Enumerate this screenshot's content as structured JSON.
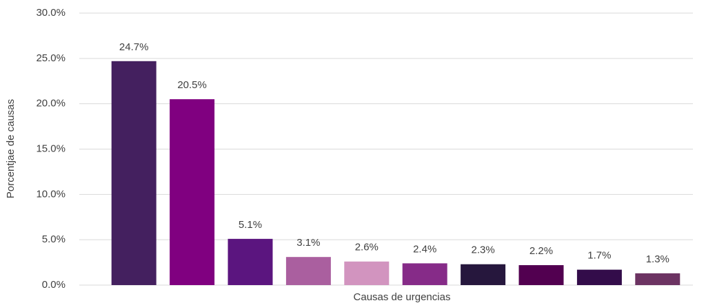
{
  "chart_data": {
    "type": "bar",
    "xlabel": "Causas de urgencias",
    "ylabel": "Porcentjae de causas",
    "categories": [
      null,
      null,
      null,
      null,
      null,
      null,
      null,
      null,
      null,
      null
    ],
    "values": [
      24.7,
      20.5,
      5.1,
      3.1,
      2.6,
      2.4,
      2.3,
      2.2,
      1.7,
      1.3
    ],
    "value_labels": [
      "24.7%",
      "20.5%",
      "5.1%",
      "3.1%",
      "2.6%",
      "2.4%",
      "2.3%",
      "2.2%",
      "1.7%",
      "1.3%"
    ],
    "colors": [
      "#44205f",
      "#800080",
      "#5b157f",
      "#aa5f9f",
      "#d294bf",
      "#862b88",
      "#26173d",
      "#520050",
      "#330c4a",
      "#6c3362"
    ],
    "ylim": [
      0,
      30
    ],
    "yticks": [
      {
        "value": 0,
        "label": "0.0%"
      },
      {
        "value": 5,
        "label": "5.0%"
      },
      {
        "value": 10,
        "label": "10.0%"
      },
      {
        "value": 15,
        "label": "15.0%"
      },
      {
        "value": 20,
        "label": "20.0%"
      },
      {
        "value": 25,
        "label": "25.0%"
      },
      {
        "value": 30,
        "label": "30.0%"
      }
    ],
    "grid": true
  }
}
